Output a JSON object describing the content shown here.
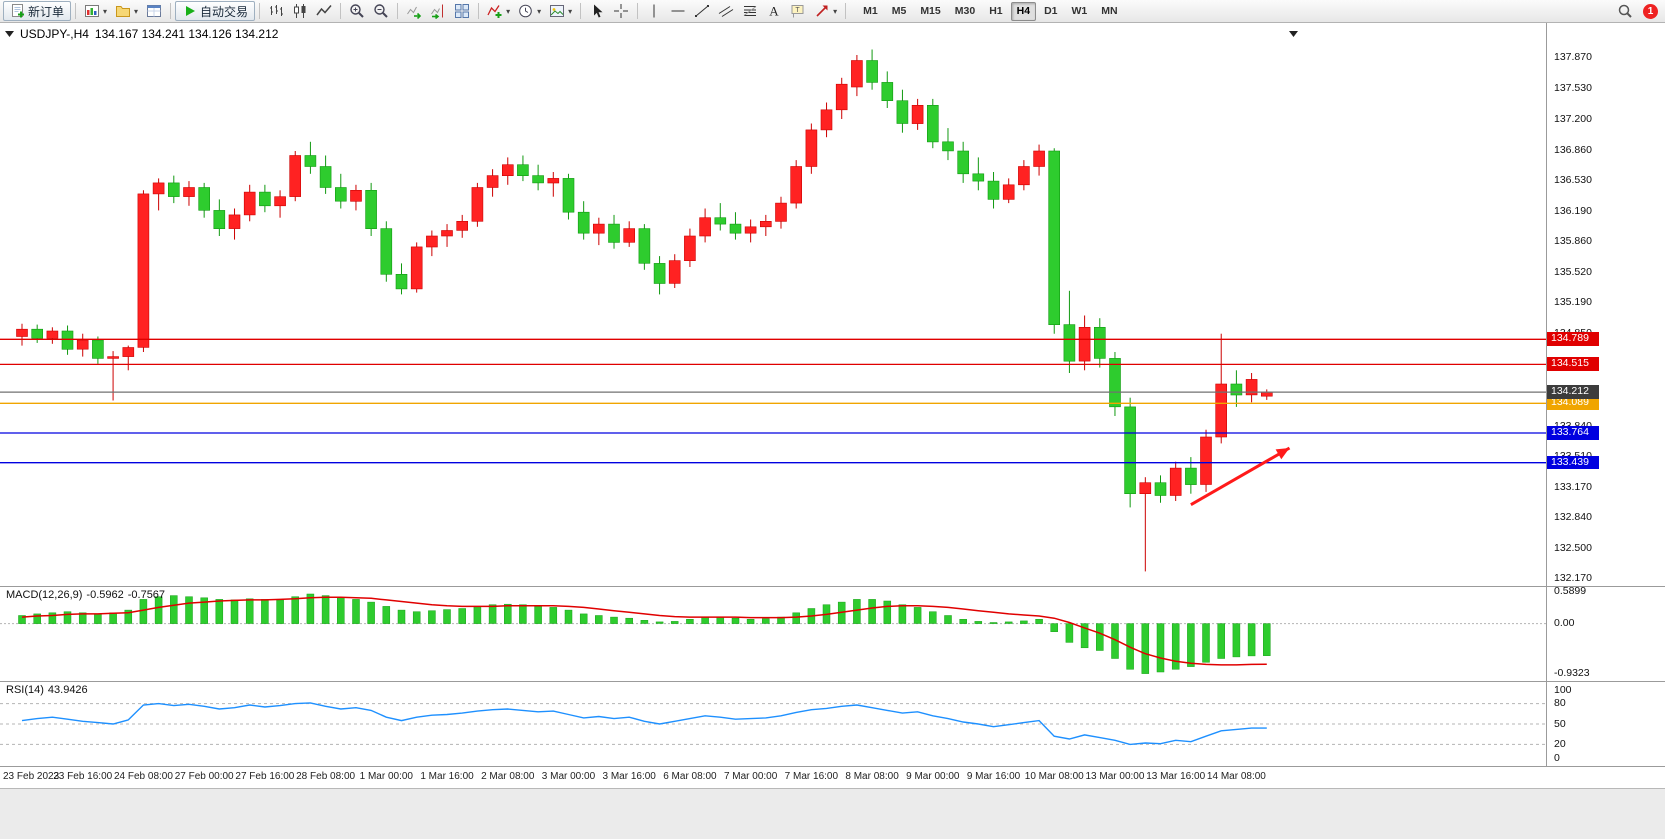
{
  "toolbar": {
    "groups": [
      {
        "items": [
          {
            "icon": "new-order-icon",
            "label": "新订单"
          }
        ]
      },
      {
        "items": [
          {
            "icon": "new-chart-icon",
            "dropdown": true
          },
          {
            "icon": "profiles-icon",
            "dropdown": true
          },
          {
            "icon": "data-window-icon"
          }
        ]
      },
      {
        "items": [
          {
            "icon": "autotrading-icon",
            "label": "自动交易"
          }
        ]
      },
      {
        "items": [
          {
            "icon": "bar-chart-icon"
          },
          {
            "icon": "candlestick-icon"
          },
          {
            "icon": "line-chart-icon"
          }
        ]
      },
      {
        "items": [
          {
            "icon": "zoom-in-icon"
          },
          {
            "icon": "zoom-out-icon"
          }
        ]
      },
      {
        "items": [
          {
            "icon": "auto-scroll-icon"
          },
          {
            "icon": "chart-shift-icon"
          },
          {
            "icon": "tile-windows-icon"
          }
        ]
      },
      {
        "items": [
          {
            "icon": "indicators-icon",
            "dropdown": true
          },
          {
            "icon": "periods-icon",
            "dropdown": true
          },
          {
            "icon": "templates-icon",
            "dropdown": true
          }
        ]
      },
      {
        "items": [
          {
            "icon": "cursor-icon"
          },
          {
            "icon": "crosshair-icon"
          }
        ]
      },
      {
        "items": [
          {
            "icon": "vertical-line-icon"
          },
          {
            "icon": "horizontal-line-icon"
          },
          {
            "icon": "trendline-icon"
          },
          {
            "icon": "equidistant-channel-icon"
          },
          {
            "icon": "fibonacci-icon"
          },
          {
            "icon": "text-icon"
          },
          {
            "icon": "text-label-icon"
          },
          {
            "icon": "arrows-icon",
            "dropdown": true
          }
        ]
      }
    ],
    "timeframes": [
      "M1",
      "M5",
      "M15",
      "M30",
      "H1",
      "H4",
      "D1",
      "W1",
      "MN"
    ],
    "active_timeframe": "H4",
    "notification_count": "1"
  },
  "chart": {
    "symbol": "USDJPY-,H4",
    "ohlc": "134.167 134.241 134.126 134.212"
  },
  "chart_data": {
    "type": "candlestick",
    "symbol": "USDJPY-",
    "timeframe": "H4",
    "colors": {
      "up": "#ff2222",
      "up_stroke": "#cc0000",
      "down": "#2ecc2e",
      "down_stroke": "#119911"
    },
    "price_axis": {
      "min": 132.09,
      "max": 138.25,
      "ticks": [
        "137.870",
        "137.530",
        "137.200",
        "136.860",
        "136.530",
        "136.190",
        "135.860",
        "135.520",
        "135.190",
        "134.850",
        "134.520",
        "134.180",
        "133.840",
        "133.510",
        "133.170",
        "132.840",
        "132.500",
        "132.170"
      ]
    },
    "time_labels": [
      "23 Feb 2023",
      "23 Feb 16:00",
      "24 Feb 08:00",
      "27 Feb 00:00",
      "27 Feb 16:00",
      "28 Feb 08:00",
      "1 Mar 00:00",
      "1 Mar 16:00",
      "2 Mar 08:00",
      "3 Mar 00:00",
      "3 Mar 16:00",
      "6 Mar 08:00",
      "7 Mar 00:00",
      "7 Mar 16:00",
      "8 Mar 08:00",
      "9 Mar 00:00",
      "9 Mar 16:00",
      "10 Mar 08:00",
      "13 Mar 00:00",
      "13 Mar 16:00",
      "14 Mar 08:00"
    ],
    "candles": [
      [
        134.82,
        134.96,
        134.72,
        134.9
      ],
      [
        134.9,
        134.95,
        134.75,
        134.8
      ],
      [
        134.8,
        134.92,
        134.74,
        134.88
      ],
      [
        134.88,
        134.94,
        134.62,
        134.68
      ],
      [
        134.68,
        134.85,
        134.6,
        134.78
      ],
      [
        134.78,
        134.82,
        134.52,
        134.58
      ],
      [
        134.58,
        134.66,
        134.12,
        134.6
      ],
      [
        134.6,
        134.72,
        134.45,
        134.7
      ],
      [
        134.7,
        136.42,
        134.65,
        136.38
      ],
      [
        136.38,
        136.55,
        136.2,
        136.5
      ],
      [
        136.5,
        136.58,
        136.28,
        136.35
      ],
      [
        136.35,
        136.52,
        136.25,
        136.45
      ],
      [
        136.45,
        136.5,
        136.12,
        136.2
      ],
      [
        136.2,
        136.32,
        135.92,
        136.0
      ],
      [
        136.0,
        136.22,
        135.88,
        136.15
      ],
      [
        136.15,
        136.48,
        136.08,
        136.4
      ],
      [
        136.4,
        136.48,
        136.18,
        136.25
      ],
      [
        136.25,
        136.42,
        136.12,
        136.35
      ],
      [
        136.35,
        136.85,
        136.3,
        136.8
      ],
      [
        136.8,
        136.95,
        136.6,
        136.68
      ],
      [
        136.68,
        136.8,
        136.38,
        136.45
      ],
      [
        136.45,
        136.6,
        136.22,
        136.3
      ],
      [
        136.3,
        136.48,
        136.2,
        136.42
      ],
      [
        136.42,
        136.5,
        135.92,
        136.0
      ],
      [
        136.0,
        136.08,
        135.42,
        135.5
      ],
      [
        135.5,
        135.62,
        135.28,
        135.34
      ],
      [
        135.34,
        135.85,
        135.3,
        135.8
      ],
      [
        135.8,
        135.98,
        135.7,
        135.92
      ],
      [
        135.92,
        136.05,
        135.8,
        135.98
      ],
      [
        135.98,
        136.15,
        135.9,
        136.08
      ],
      [
        136.08,
        136.5,
        136.02,
        136.45
      ],
      [
        136.45,
        136.65,
        136.35,
        136.58
      ],
      [
        136.58,
        136.78,
        136.48,
        136.7
      ],
      [
        136.7,
        136.8,
        136.52,
        136.58
      ],
      [
        136.58,
        136.7,
        136.42,
        136.5
      ],
      [
        136.5,
        136.62,
        136.35,
        136.55
      ],
      [
        136.55,
        136.6,
        136.1,
        136.18
      ],
      [
        136.18,
        136.3,
        135.88,
        135.95
      ],
      [
        135.95,
        136.12,
        135.82,
        136.05
      ],
      [
        136.05,
        136.15,
        135.78,
        135.85
      ],
      [
        135.85,
        136.08,
        135.8,
        136.0
      ],
      [
        136.0,
        136.05,
        135.55,
        135.62
      ],
      [
        135.62,
        135.7,
        135.28,
        135.4
      ],
      [
        135.4,
        135.72,
        135.35,
        135.65
      ],
      [
        135.65,
        136.0,
        135.58,
        135.92
      ],
      [
        135.92,
        136.22,
        135.85,
        136.12
      ],
      [
        136.12,
        136.28,
        135.98,
        136.05
      ],
      [
        136.05,
        136.18,
        135.88,
        135.95
      ],
      [
        135.95,
        136.1,
        135.85,
        136.02
      ],
      [
        136.02,
        136.15,
        135.92,
        136.08
      ],
      [
        136.08,
        136.35,
        136.0,
        136.28
      ],
      [
        136.28,
        136.75,
        136.22,
        136.68
      ],
      [
        136.68,
        137.15,
        136.6,
        137.08
      ],
      [
        137.08,
        137.38,
        137.0,
        137.3
      ],
      [
        137.3,
        137.65,
        137.2,
        137.58
      ],
      [
        137.55,
        137.9,
        137.45,
        137.84
      ],
      [
        137.84,
        137.96,
        137.52,
        137.6
      ],
      [
        137.6,
        137.72,
        137.32,
        137.4
      ],
      [
        137.4,
        137.52,
        137.05,
        137.15
      ],
      [
        137.15,
        137.42,
        137.08,
        137.35
      ],
      [
        137.35,
        137.42,
        136.88,
        136.95
      ],
      [
        136.95,
        137.1,
        136.75,
        136.85
      ],
      [
        136.85,
        136.95,
        136.5,
        136.6
      ],
      [
        136.6,
        136.78,
        136.42,
        136.52
      ],
      [
        136.52,
        136.62,
        136.22,
        136.32
      ],
      [
        136.32,
        136.55,
        136.28,
        136.48
      ],
      [
        136.48,
        136.75,
        136.42,
        136.68
      ],
      [
        136.68,
        136.92,
        136.58,
        136.85
      ],
      [
        136.85,
        136.88,
        134.85,
        134.95
      ],
      [
        134.95,
        135.32,
        134.42,
        134.55
      ],
      [
        134.55,
        135.05,
        134.45,
        134.92
      ],
      [
        134.92,
        135.02,
        134.48,
        134.58
      ],
      [
        134.58,
        134.65,
        133.95,
        134.05
      ],
      [
        134.05,
        134.15,
        132.95,
        133.1
      ],
      [
        133.1,
        133.28,
        132.25,
        133.22
      ],
      [
        133.22,
        133.3,
        133.0,
        133.08
      ],
      [
        133.08,
        133.45,
        133.02,
        133.38
      ],
      [
        133.38,
        133.5,
        133.1,
        133.2
      ],
      [
        133.2,
        133.8,
        133.12,
        133.72
      ],
      [
        133.72,
        134.85,
        133.65,
        134.3
      ],
      [
        134.3,
        134.45,
        134.05,
        134.18
      ],
      [
        134.18,
        134.42,
        134.1,
        134.35
      ],
      [
        134.167,
        134.241,
        134.126,
        134.212
      ]
    ],
    "hlines": [
      {
        "price": 134.789,
        "color": "#e00000",
        "label": "134.789"
      },
      {
        "price": 134.515,
        "color": "#e00000",
        "label": "134.515"
      },
      {
        "price": 134.089,
        "color": "#f0a500",
        "label": "134.089"
      },
      {
        "price": 133.764,
        "color": "#0000e0",
        "label": "133.764"
      },
      {
        "price": 133.439,
        "color": "#0000e0",
        "label": "133.439"
      }
    ],
    "bid_line": {
      "price": 134.212,
      "color": "#707070",
      "badge_color": "#3c3c3c",
      "label": "134.212"
    },
    "arrow": {
      "from": {
        "index": 77,
        "price": 132.98
      },
      "to": {
        "index": 83.5,
        "price": 133.6
      },
      "color": "#ff1a1a"
    },
    "macd": {
      "label": "MACD(12,26,9)",
      "value_main": "-0.5962",
      "value_signal": "-0.7567",
      "range": {
        "min": -1.05,
        "max": 0.68
      },
      "axis": [
        {
          "value": 0.5899,
          "label": "0.5899"
        },
        {
          "value": 0,
          "label": "0.00"
        },
        {
          "value": -0.9323,
          "label": "-0.9323"
        }
      ],
      "histogram_color": "#2ecc2e",
      "signal_color": "#e00000",
      "histogram": [
        0.15,
        0.18,
        0.2,
        0.22,
        0.2,
        0.18,
        0.2,
        0.25,
        0.45,
        0.5,
        0.52,
        0.5,
        0.48,
        0.45,
        0.44,
        0.46,
        0.45,
        0.44,
        0.5,
        0.55,
        0.52,
        0.48,
        0.45,
        0.4,
        0.32,
        0.25,
        0.22,
        0.24,
        0.26,
        0.28,
        0.32,
        0.35,
        0.36,
        0.35,
        0.32,
        0.3,
        0.25,
        0.18,
        0.15,
        0.12,
        0.1,
        0.06,
        0.03,
        0.04,
        0.08,
        0.12,
        0.12,
        0.1,
        0.08,
        0.09,
        0.12,
        0.2,
        0.28,
        0.35,
        0.4,
        0.45,
        0.45,
        0.42,
        0.35,
        0.3,
        0.22,
        0.15,
        0.08,
        0.04,
        0.02,
        0.03,
        0.05,
        0.08,
        -0.15,
        -0.35,
        -0.45,
        -0.5,
        -0.65,
        -0.85,
        -0.93,
        -0.9,
        -0.85,
        -0.8,
        -0.72,
        -0.65,
        -0.62,
        -0.6,
        -0.5962
      ],
      "signal": [
        0.12,
        0.14,
        0.15,
        0.17,
        0.18,
        0.18,
        0.19,
        0.2,
        0.25,
        0.3,
        0.34,
        0.38,
        0.4,
        0.42,
        0.43,
        0.44,
        0.44,
        0.45,
        0.46,
        0.48,
        0.49,
        0.49,
        0.48,
        0.47,
        0.44,
        0.41,
        0.38,
        0.35,
        0.33,
        0.32,
        0.32,
        0.32,
        0.33,
        0.33,
        0.33,
        0.33,
        0.32,
        0.3,
        0.27,
        0.24,
        0.21,
        0.18,
        0.15,
        0.13,
        0.12,
        0.12,
        0.12,
        0.12,
        0.11,
        0.11,
        0.11,
        0.12,
        0.14,
        0.17,
        0.21,
        0.25,
        0.29,
        0.32,
        0.33,
        0.33,
        0.32,
        0.3,
        0.27,
        0.24,
        0.21,
        0.18,
        0.16,
        0.14,
        0.1,
        0.02,
        -0.08,
        -0.18,
        -0.3,
        -0.44,
        -0.56,
        -0.64,
        -0.7,
        -0.74,
        -0.76,
        -0.77,
        -0.77,
        -0.76,
        -0.7567
      ]
    },
    "rsi": {
      "label": "RSI(14)",
      "value": "43.9426",
      "range": {
        "min": 0,
        "max": 100
      },
      "levels": [
        80,
        50,
        20
      ],
      "axis": [
        {
          "value": 100,
          "label": "100"
        },
        {
          "value": 80,
          "label": "80"
        },
        {
          "value": 50,
          "label": "50"
        },
        {
          "value": 20,
          "label": "20"
        },
        {
          "value": 0,
          "label": "0"
        }
      ],
      "line_color": "#1e90ff",
      "values": [
        55,
        58,
        60,
        57,
        54,
        52,
        50,
        56,
        78,
        80,
        77,
        79,
        76,
        72,
        74,
        78,
        75,
        77,
        80,
        81,
        76,
        72,
        74,
        70,
        60,
        55,
        60,
        63,
        64,
        66,
        69,
        71,
        72,
        70,
        68,
        69,
        64,
        59,
        61,
        58,
        60,
        54,
        50,
        54,
        58,
        62,
        60,
        57,
        58,
        59,
        62,
        67,
        71,
        73,
        76,
        78,
        74,
        70,
        66,
        68,
        62,
        58,
        53,
        50,
        46,
        49,
        52,
        55,
        32,
        28,
        34,
        30,
        26,
        20,
        22,
        21,
        26,
        24,
        32,
        40,
        42,
        44,
        43.94
      ]
    }
  }
}
